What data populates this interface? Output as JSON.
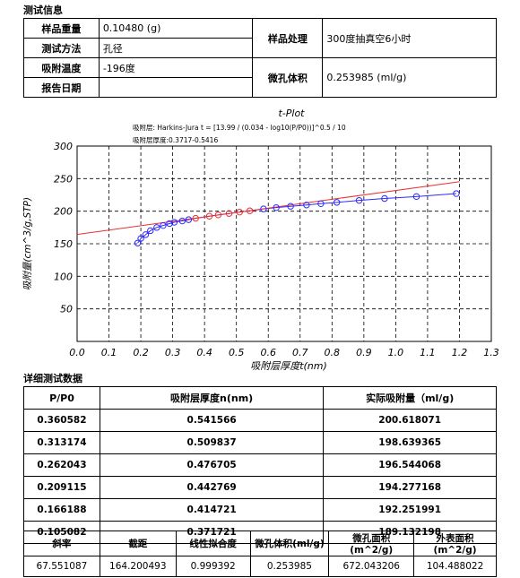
{
  "info_section": {
    "title": "测试信息",
    "sample_weight_label": "样品重量",
    "sample_weight_value": "0.10480 (g)",
    "test_method_label": "测试方法",
    "test_method_value": "孔径",
    "adsorption_temp_label": "吸附温度",
    "adsorption_temp_value": "-196度",
    "report_date_label": "报告日期",
    "report_date_value": "",
    "sample_treatment_label": "样品处理",
    "sample_treatment_value": "300度抽真空6小时",
    "micropore_volume_label": "微孔体积",
    "micropore_volume_value": "0.253985 (ml/g)"
  },
  "chart_data": {
    "type": "scatter",
    "title": "t-Plot",
    "subtitle1": "吸附层: Harkins-Jura t = [13.99 / (0.034 - log10(P/P0))]^0.5 / 10",
    "subtitle2": "吸附层厚度:0.3717-0.5416",
    "xlabel": "吸附层厚度t(nm)",
    "ylabel": "吸附量(cm^3/g,STP)",
    "xlim": [
      0,
      1.3
    ],
    "ylim": [
      0,
      300
    ],
    "xticks": [
      "0.0",
      "0.1",
      "0.2",
      "0.3",
      "0.4",
      "0.5",
      "0.6",
      "0.7",
      "0.8",
      "0.9",
      "1.0",
      "1.1",
      "1.2",
      "1.3"
    ],
    "yticks": [
      "50",
      "100",
      "150",
      "200",
      "250",
      "300"
    ],
    "grid": true,
    "series": [
      {
        "x": [
          0.19,
          0.2,
          0.215,
          0.23,
          0.25,
          0.27,
          0.29,
          0.305,
          0.33,
          0.35
        ],
        "y": [
          151,
          158,
          164,
          170,
          175,
          178,
          181,
          183,
          185,
          187
        ],
        "color": "#2b2bff"
      },
      {
        "x": [
          0.372,
          0.415,
          0.443,
          0.477,
          0.51,
          0.542
        ],
        "y": [
          189.1,
          192.3,
          194.3,
          196.5,
          198.6,
          200.6
        ],
        "color": "#e83030"
      },
      {
        "x": [
          0.585,
          0.625,
          0.67,
          0.72,
          0.765,
          0.815,
          0.885,
          0.965,
          1.065,
          1.19
        ],
        "y": [
          203.5,
          205.5,
          207.5,
          209.5,
          211.5,
          213.5,
          216.5,
          219.5,
          222.5,
          227
        ],
        "color": "#2b2bff"
      }
    ],
    "fit_line": {
      "slope": 67.551087,
      "intercept": 164.200493,
      "x_range": [
        0,
        1.2
      ],
      "color": "#e83030"
    },
    "curve_color": "#2b2bff"
  },
  "detail_section": {
    "title": "详细测试数据",
    "headers": [
      "P/P0",
      "吸附层厚度n(nm)",
      "实际吸附量（ml/g)"
    ],
    "rows": [
      [
        "0.360582",
        "0.541566",
        "200.618071"
      ],
      [
        "0.313174",
        "0.509837",
        "198.639365"
      ],
      [
        "0.262043",
        "0.476705",
        "196.544068"
      ],
      [
        "0.209115",
        "0.442769",
        "194.277168"
      ],
      [
        "0.166188",
        "0.414721",
        "192.251991"
      ],
      [
        "0.105082",
        "0.371721",
        "189.132198"
      ]
    ]
  },
  "stats": {
    "headers": [
      "斜率",
      "截距",
      "线性拟合度",
      "微孔体积(ml/g)",
      "微孔面积(m^2/g)",
      "外表面积(m^2/g)"
    ],
    "values": [
      "67.551087",
      "164.200493",
      "0.999392",
      "0.253985",
      "672.043206",
      "104.488022"
    ]
  }
}
